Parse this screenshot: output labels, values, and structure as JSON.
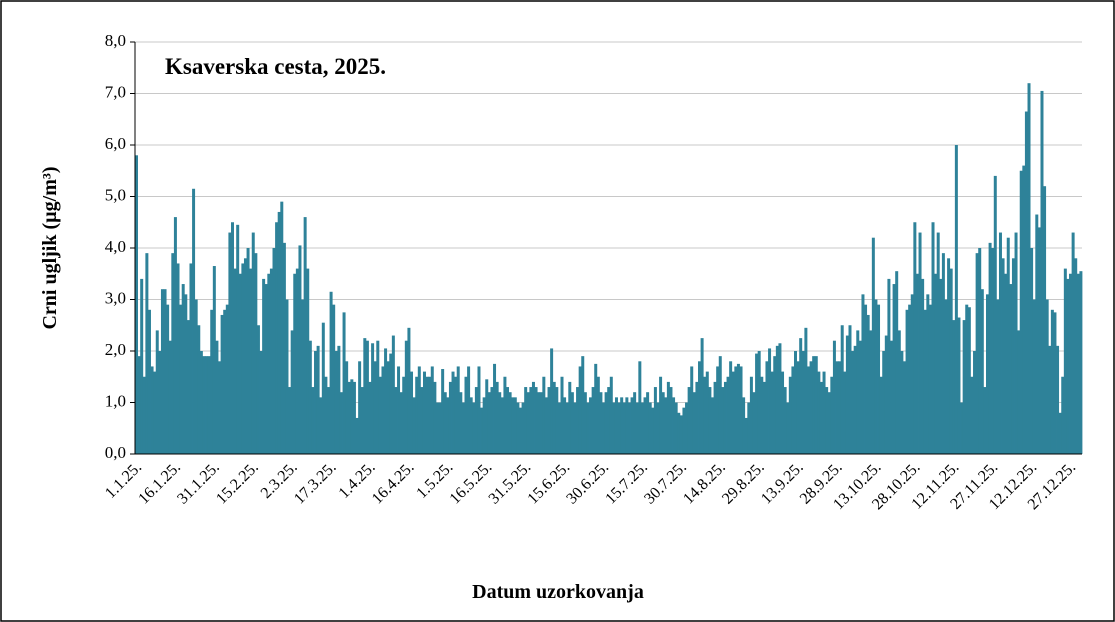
{
  "chart_data": {
    "type": "bar",
    "title": "Ksaverska cesta, 2025.",
    "xlabel": "Datum uzorkovanja",
    "ylabel": "Crni ugljik (µg/m³)",
    "color": "#2e8299",
    "grid": true,
    "ylim": [
      0,
      8
    ],
    "yticks": [
      {
        "value": 0,
        "label": "0,0"
      },
      {
        "value": 1,
        "label": "1,0"
      },
      {
        "value": 2,
        "label": "2,0"
      },
      {
        "value": 3,
        "label": "3,0"
      },
      {
        "value": 4,
        "label": "4,0"
      },
      {
        "value": 5,
        "label": "5,0"
      },
      {
        "value": 6,
        "label": "6,0"
      },
      {
        "value": 7,
        "label": "7,0"
      },
      {
        "value": 8,
        "label": "8,0"
      }
    ],
    "categories": [
      "1.1.25.",
      null,
      null,
      null,
      null,
      null,
      null,
      null,
      null,
      null,
      null,
      null,
      null,
      null,
      null,
      "16.1.25.",
      null,
      null,
      null,
      null,
      null,
      null,
      null,
      null,
      null,
      null,
      null,
      null,
      null,
      null,
      "31.1.25.",
      null,
      null,
      null,
      null,
      null,
      null,
      null,
      null,
      null,
      null,
      null,
      null,
      null,
      null,
      "15.2.25.",
      null,
      null,
      null,
      null,
      null,
      null,
      null,
      null,
      null,
      null,
      null,
      null,
      null,
      null,
      "2.3.25.",
      null,
      null,
      null,
      null,
      null,
      null,
      null,
      null,
      null,
      null,
      null,
      null,
      null,
      null,
      "17.3.25.",
      null,
      null,
      null,
      null,
      null,
      null,
      null,
      null,
      null,
      null,
      null,
      null,
      null,
      null,
      "1.4.25.",
      null,
      null,
      null,
      null,
      null,
      null,
      null,
      null,
      null,
      null,
      null,
      null,
      null,
      null,
      "16.4.25.",
      null,
      null,
      null,
      null,
      null,
      null,
      null,
      null,
      null,
      null,
      null,
      null,
      null,
      null,
      "1.5.25.",
      null,
      null,
      null,
      null,
      null,
      null,
      null,
      null,
      null,
      null,
      null,
      null,
      null,
      null,
      "16.5.25.",
      null,
      null,
      null,
      null,
      null,
      null,
      null,
      null,
      null,
      null,
      null,
      null,
      null,
      null,
      "31.5.25.",
      null,
      null,
      null,
      null,
      null,
      null,
      null,
      null,
      null,
      null,
      null,
      null,
      null,
      null,
      "15.6.25.",
      null,
      null,
      null,
      null,
      null,
      null,
      null,
      null,
      null,
      null,
      null,
      null,
      null,
      null,
      "30.6.25.",
      null,
      null,
      null,
      null,
      null,
      null,
      null,
      null,
      null,
      null,
      null,
      null,
      null,
      null,
      "15.7.25.",
      null,
      null,
      null,
      null,
      null,
      null,
      null,
      null,
      null,
      null,
      null,
      null,
      null,
      null,
      "30.7.25.",
      null,
      null,
      null,
      null,
      null,
      null,
      null,
      null,
      null,
      null,
      null,
      null,
      null,
      null,
      "14.8.25.",
      null,
      null,
      null,
      null,
      null,
      null,
      null,
      null,
      null,
      null,
      null,
      null,
      null,
      null,
      "29.8.25.",
      null,
      null,
      null,
      null,
      null,
      null,
      null,
      null,
      null,
      null,
      null,
      null,
      null,
      null,
      "13.9.25.",
      null,
      null,
      null,
      null,
      null,
      null,
      null,
      null,
      null,
      null,
      null,
      null,
      null,
      null,
      "28.9.25.",
      null,
      null,
      null,
      null,
      null,
      null,
      null,
      null,
      null,
      null,
      null,
      null,
      null,
      null,
      "13.10.25.",
      null,
      null,
      null,
      null,
      null,
      null,
      null,
      null,
      null,
      null,
      null,
      null,
      null,
      null,
      "28.10.25.",
      null,
      null,
      null,
      null,
      null,
      null,
      null,
      null,
      null,
      null,
      null,
      null,
      null,
      null,
      "12.11.25.",
      null,
      null,
      null,
      null,
      null,
      null,
      null,
      null,
      null,
      null,
      null,
      null,
      null,
      null,
      "27.11.25.",
      null,
      null,
      null,
      null,
      null,
      null,
      null,
      null,
      null,
      null,
      null,
      null,
      null,
      null,
      "12.12.25.",
      null,
      null,
      null,
      null,
      null,
      null,
      null,
      null,
      null,
      null,
      null,
      null,
      null,
      null,
      "27.12.25.",
      null,
      null,
      null,
      null
    ],
    "values": [
      5.8,
      1.9,
      3.4,
      1.5,
      3.9,
      2.8,
      1.7,
      1.6,
      2.4,
      2.0,
      3.2,
      3.2,
      2.9,
      2.2,
      3.9,
      4.6,
      3.7,
      2.9,
      3.3,
      3.1,
      2.6,
      3.7,
      5.15,
      3.0,
      2.5,
      2.0,
      1.9,
      1.9,
      1.9,
      2.8,
      3.65,
      2.2,
      1.8,
      2.7,
      2.8,
      2.9,
      4.3,
      4.5,
      3.6,
      4.45,
      3.5,
      3.7,
      3.8,
      4.0,
      3.6,
      4.3,
      3.9,
      2.5,
      2.0,
      3.4,
      3.3,
      3.5,
      3.6,
      4.0,
      4.5,
      4.7,
      4.9,
      4.1,
      3.0,
      1.3,
      2.4,
      3.5,
      3.6,
      4.05,
      3.0,
      4.6,
      3.6,
      2.2,
      1.3,
      2.0,
      2.1,
      1.1,
      2.55,
      1.5,
      1.3,
      3.15,
      2.9,
      2.0,
      2.1,
      1.2,
      2.75,
      1.8,
      1.4,
      1.45,
      1.4,
      0.7,
      1.8,
      1.3,
      2.25,
      2.2,
      1.4,
      2.15,
      1.8,
      2.2,
      1.5,
      1.7,
      2.05,
      1.8,
      1.95,
      2.3,
      1.3,
      1.7,
      1.2,
      1.5,
      2.2,
      2.45,
      1.6,
      1.1,
      1.5,
      1.7,
      1.3,
      1.6,
      1.5,
      1.5,
      1.7,
      1.4,
      1.0,
      1.0,
      1.65,
      1.2,
      1.1,
      1.4,
      1.6,
      1.5,
      1.7,
      1.2,
      1.0,
      1.5,
      1.7,
      1.1,
      1.0,
      1.3,
      1.7,
      0.9,
      1.1,
      1.45,
      1.2,
      1.3,
      1.75,
      1.4,
      1.2,
      1.1,
      1.5,
      1.3,
      1.2,
      1.1,
      1.1,
      1.0,
      0.9,
      1.0,
      1.3,
      1.2,
      1.3,
      1.4,
      1.3,
      1.2,
      1.2,
      1.5,
      1.1,
      1.3,
      2.05,
      1.4,
      1.3,
      1.0,
      1.5,
      1.1,
      1.0,
      1.4,
      1.2,
      1.0,
      1.3,
      1.7,
      1.9,
      1.2,
      1.0,
      1.1,
      1.3,
      1.75,
      1.5,
      1.2,
      1.0,
      1.2,
      1.3,
      1.5,
      1.0,
      1.1,
      1.0,
      1.1,
      1.0,
      1.1,
      1.0,
      1.1,
      1.2,
      1.0,
      1.8,
      1.0,
      1.1,
      1.2,
      1.0,
      0.9,
      1.3,
      1.0,
      1.5,
      1.2,
      1.1,
      1.4,
      1.3,
      1.1,
      1.0,
      0.8,
      0.75,
      0.9,
      1.0,
      1.3,
      1.7,
      1.2,
      1.4,
      1.8,
      2.25,
      1.5,
      1.6,
      1.3,
      1.1,
      1.4,
      1.7,
      1.9,
      1.3,
      1.4,
      1.5,
      1.8,
      1.6,
      1.7,
      1.75,
      1.7,
      1.1,
      0.7,
      1.0,
      1.5,
      1.2,
      1.95,
      2.0,
      1.5,
      1.4,
      1.8,
      2.05,
      1.6,
      1.9,
      2.1,
      2.15,
      1.6,
      1.3,
      1.0,
      1.5,
      1.7,
      2.0,
      1.8,
      2.25,
      2.0,
      2.45,
      1.7,
      1.8,
      1.9,
      1.9,
      1.6,
      1.4,
      1.6,
      1.3,
      1.2,
      1.5,
      2.2,
      1.8,
      1.8,
      2.5,
      1.6,
      2.3,
      2.5,
      2.0,
      2.1,
      2.4,
      2.2,
      3.1,
      2.9,
      2.7,
      2.4,
      4.2,
      3.0,
      2.9,
      1.5,
      2.0,
      2.3,
      3.4,
      2.2,
      3.3,
      3.55,
      2.4,
      2.0,
      1.8,
      2.8,
      2.9,
      3.1,
      4.5,
      3.5,
      4.3,
      3.4,
      2.8,
      3.1,
      2.9,
      4.5,
      3.5,
      4.3,
      3.4,
      3.9,
      3.0,
      3.8,
      3.6,
      2.6,
      6.0,
      2.65,
      1.0,
      2.6,
      2.9,
      2.85,
      1.5,
      2.0,
      3.9,
      4.0,
      3.2,
      1.3,
      3.1,
      4.1,
      4.0,
      5.4,
      3.0,
      4.3,
      3.8,
      3.5,
      4.2,
      3.3,
      3.8,
      4.3,
      2.4,
      5.5,
      5.6,
      6.65,
      7.2,
      4.0,
      3.0,
      4.65,
      4.4,
      7.05,
      5.2,
      3.0,
      2.1,
      2.8,
      2.75,
      2.1,
      0.8,
      1.5,
      3.6,
      3.4,
      3.5,
      4.3,
      3.8,
      3.5,
      3.55
    ]
  }
}
